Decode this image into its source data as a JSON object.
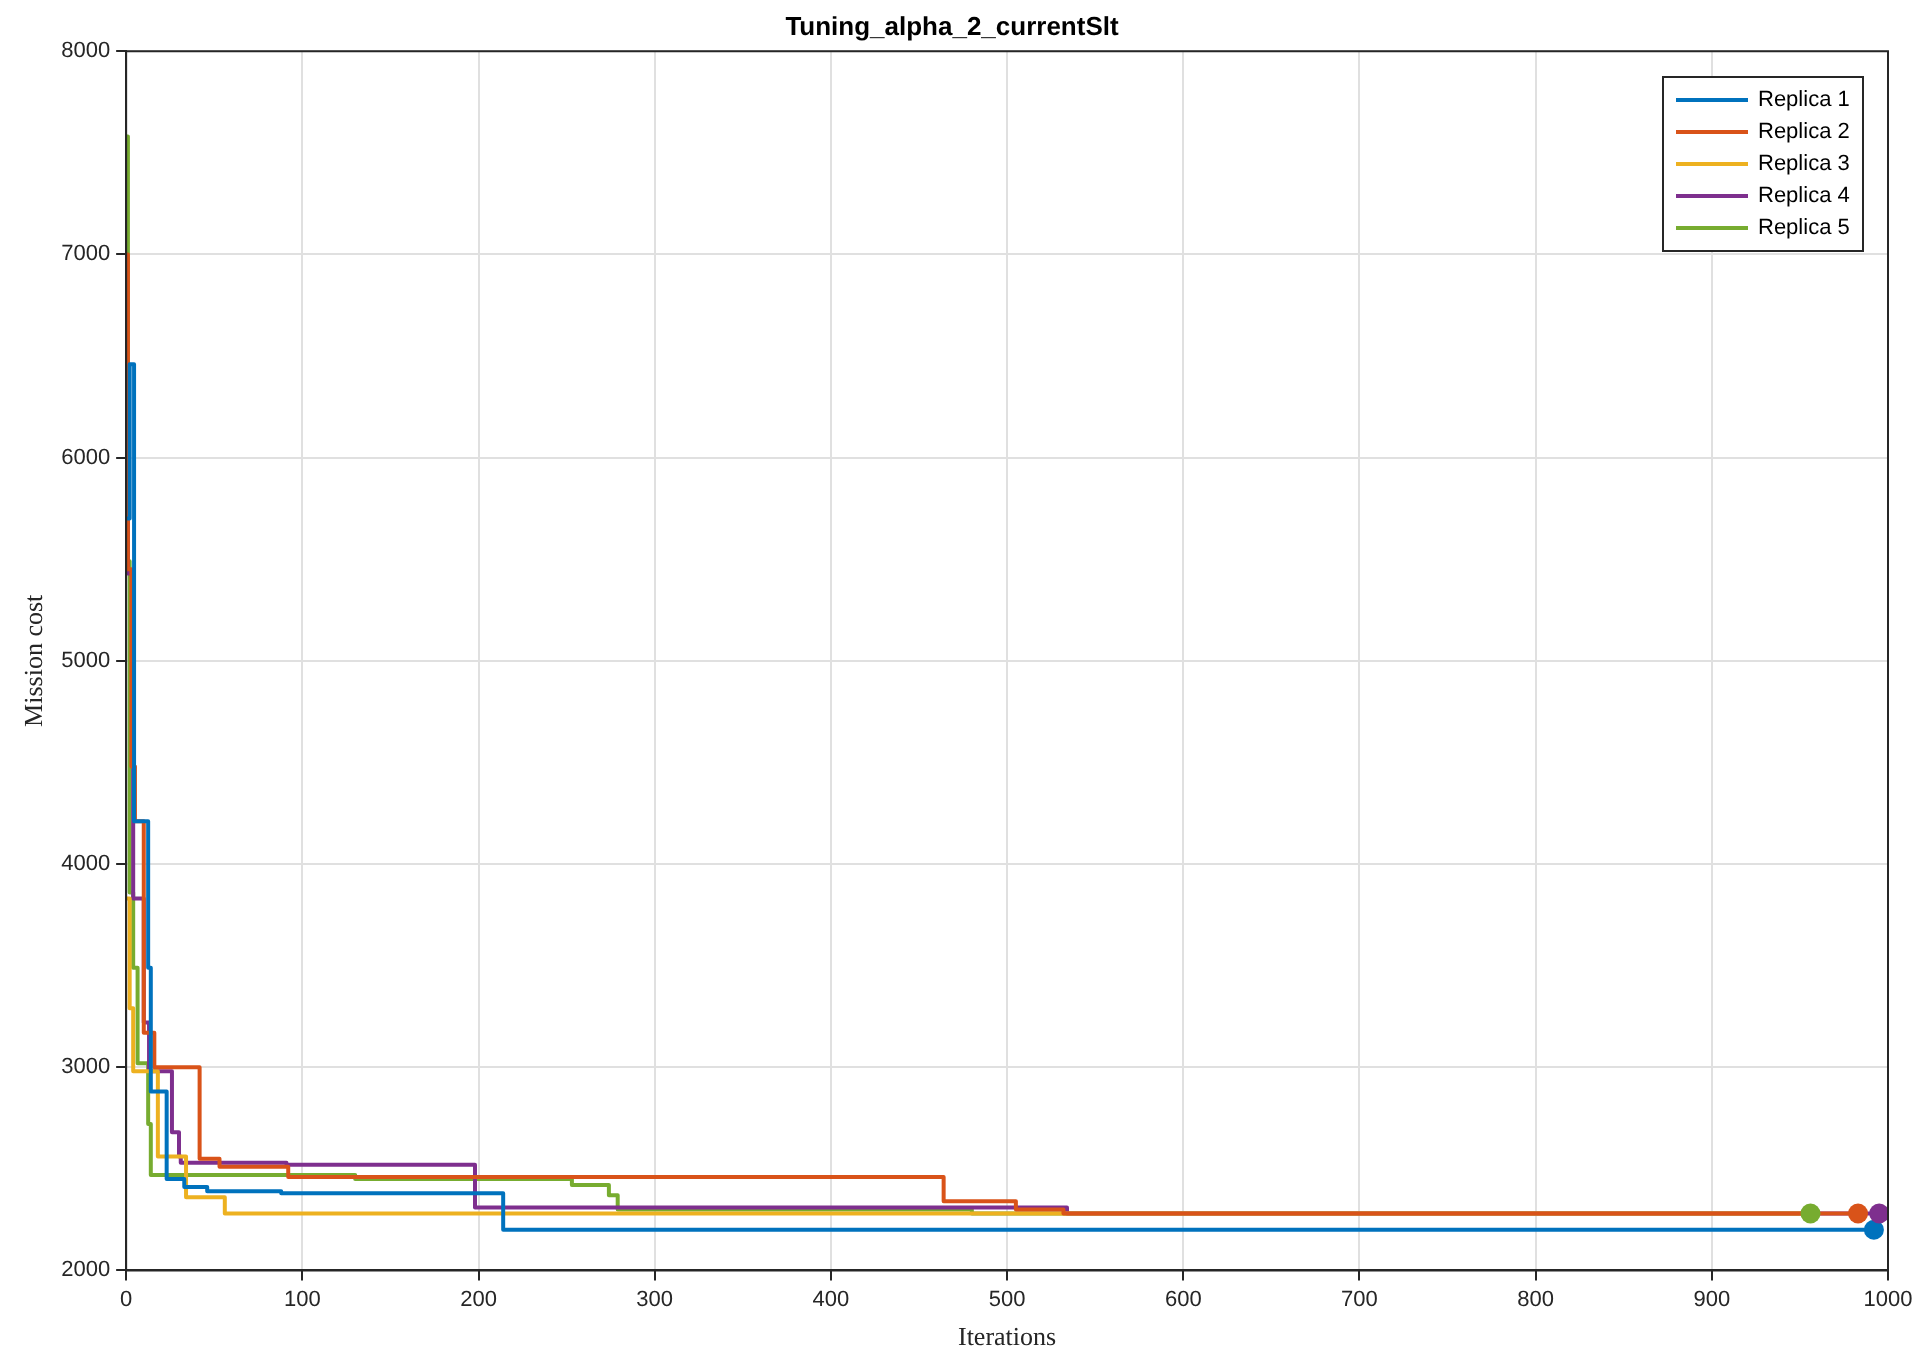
{
  "chart_data": {
    "type": "step",
    "title": "Tuning_alpha_2_currentSlt",
    "xlabel": "Iterations",
    "ylabel": "Mission cost",
    "xlim": [
      0,
      1000
    ],
    "ylim": [
      2000,
      8000
    ],
    "xticks": [
      0,
      100,
      200,
      300,
      400,
      500,
      600,
      700,
      800,
      900,
      1000
    ],
    "yticks": [
      2000,
      3000,
      4000,
      5000,
      6000,
      7000,
      8000
    ],
    "grid": true,
    "legend": "top right",
    "line_style": "solid",
    "series": [
      {
        "name": "Replica 1",
        "color": "#0072bd",
        "x": [
          0,
          2,
          4.5,
          12.5,
          14,
          23,
          33,
          46,
          88,
          214,
          992
        ],
        "values": [
          5700,
          6460,
          4210,
          3490,
          2880,
          2450,
          2410,
          2390,
          2380,
          2200,
          2200
        ]
      },
      {
        "name": "Replica 2",
        "color": "#d95319",
        "x": [
          0,
          1,
          3,
          5,
          10,
          16,
          41.7,
          53,
          92,
          464,
          505,
          532,
          983
        ],
        "values": [
          7000,
          5450,
          4480,
          4210,
          3170,
          3000,
          2550,
          2510,
          2460,
          2340,
          2300,
          2280,
          2280
        ]
      },
      {
        "name": "Replica 3",
        "color": "#edb120",
        "x": [
          0,
          2,
          4,
          18,
          34,
          56,
          956
        ],
        "values": [
          3830,
          3290,
          2980,
          2560,
          2360,
          2280,
          2280
        ]
      },
      {
        "name": "Replica 4",
        "color": "#7e2f8e",
        "x": [
          0,
          1,
          4,
          10,
          13,
          26,
          30,
          31,
          91,
          198,
          534,
          995
        ],
        "values": [
          6000,
          5430,
          3830,
          3220,
          2980,
          2680,
          2560,
          2530,
          2520,
          2310,
          2280,
          2280
        ]
      },
      {
        "name": "Replica 5",
        "color": "#77ac30",
        "x": [
          0,
          1,
          2,
          4,
          6.5,
          12.5,
          14,
          130,
          253,
          274,
          279,
          480,
          956
        ],
        "values": [
          7580,
          5490,
          3860,
          3490,
          3020,
          2720,
          2470,
          2450,
          2420,
          2370,
          2300,
          2280,
          2280
        ]
      },
      {
        "type": "scatter",
        "marker": "circle",
        "colors": [
          "#0072bd",
          "#d95319",
          "#7e2f8e",
          "#77ac30"
        ],
        "x": [
          992,
          983,
          995,
          956
        ],
        "values": [
          2200,
          2280,
          2280,
          2280
        ]
      }
    ]
  }
}
